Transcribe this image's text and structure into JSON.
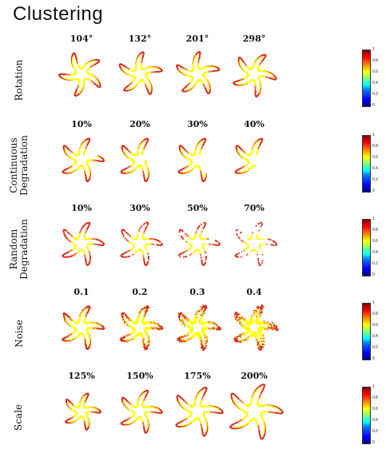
{
  "title": "Clustering",
  "rows": [
    {
      "label_lines": [
        "Rotation"
      ],
      "columns": [
        "104°",
        "132°",
        "201°",
        "298°"
      ],
      "variant": "rotation",
      "params": [
        104,
        132,
        201,
        298
      ]
    },
    {
      "label_lines": [
        "Continuous",
        "Degradation"
      ],
      "columns": [
        "10%",
        "20%",
        "30%",
        "40%"
      ],
      "variant": "continuous",
      "params": [
        0.1,
        0.2,
        0.3,
        0.4
      ]
    },
    {
      "label_lines": [
        "Random",
        "Degradation"
      ],
      "columns": [
        "10%",
        "30%",
        "50%",
        "70%"
      ],
      "variant": "random",
      "params": [
        0.1,
        0.3,
        0.5,
        0.7
      ]
    },
    {
      "label_lines": [
        "Noise"
      ],
      "columns": [
        "0.1",
        "0.2",
        "0.3",
        "0.4"
      ],
      "variant": "noise",
      "params": [
        0.1,
        0.2,
        0.3,
        0.4
      ]
    },
    {
      "label_lines": [
        "Scale"
      ],
      "columns": [
        "125%",
        "150%",
        "175%",
        "200%"
      ],
      "variant": "scale",
      "params": [
        1.25,
        1.5,
        1.75,
        2.0
      ]
    }
  ],
  "colorbar": {
    "ticks": [
      "1",
      "0.8",
      "0.6",
      "0.4",
      "0.2",
      "0"
    ],
    "colormap": "jet"
  },
  "colors": {
    "edge": "#d7301f",
    "mid": "#f46d43",
    "inner": "#ffff00"
  }
}
